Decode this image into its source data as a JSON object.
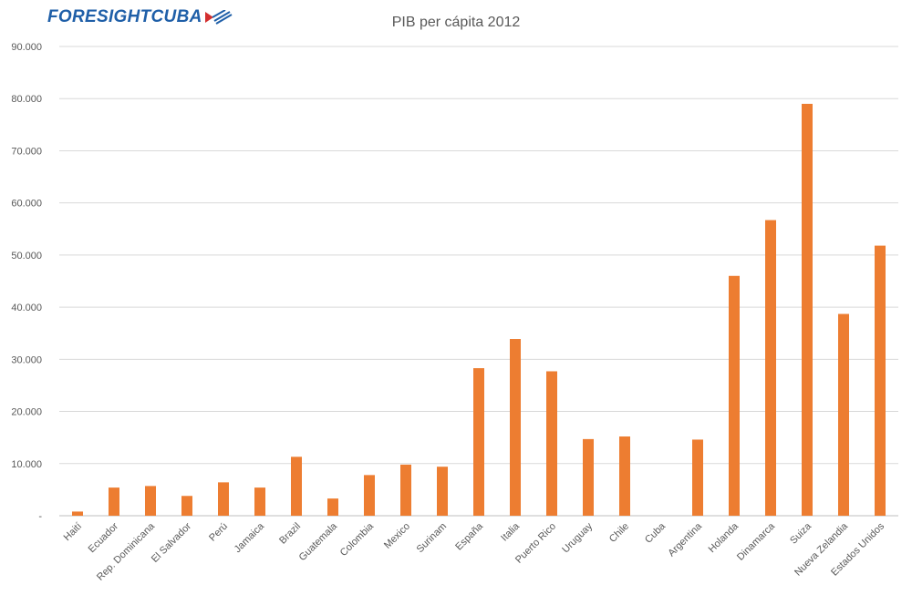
{
  "logo": {
    "text": "FORESIGHTCUBA",
    "colors": {
      "text": "#1f5fa8",
      "flag_red": "#d32f2f",
      "flag_blue": "#1f5fa8"
    }
  },
  "chart_data": {
    "type": "bar",
    "title": "PIB per cápita 2012",
    "xlabel": "",
    "ylabel": "",
    "ylim": [
      0,
      90000
    ],
    "yticks": [
      0,
      10000,
      20000,
      30000,
      40000,
      50000,
      60000,
      70000,
      80000,
      90000
    ],
    "ytick_labels": [
      "-",
      "10.000",
      "20.000",
      "30.000",
      "40.000",
      "50.000",
      "60.000",
      "70.000",
      "80.000",
      "90.000"
    ],
    "grid": true,
    "bar_color": "#ed7d31",
    "categories": [
      "Haití",
      "Ecuador",
      "Rep. Dominicana",
      "El Salvador",
      "Perú",
      "Jamaica",
      "Brazil",
      "Guatemala",
      "Colombia",
      "Mexico",
      "Surinam",
      "España",
      "Italia",
      "Puerto Rico",
      "Uruguay",
      "Chile",
      "Cuba",
      "Argentina",
      "Holanda",
      "Dinamarca",
      "Suiza",
      "Nueva Zelandia",
      "Estados Unidos"
    ],
    "values": [
      800,
      5400,
      5700,
      3800,
      6400,
      5400,
      11300,
      3300,
      7800,
      9800,
      9400,
      28300,
      33900,
      27700,
      14700,
      15200,
      0,
      14600,
      46000,
      56700,
      79000,
      38700,
      51800
    ]
  }
}
